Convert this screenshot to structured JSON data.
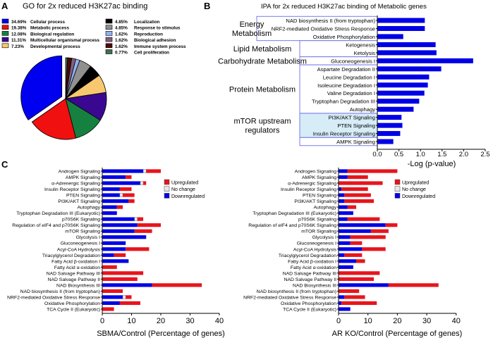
{
  "panels": {
    "a": "A",
    "b": "B",
    "c": "C"
  },
  "colors": {
    "blue": "#0000e6",
    "red": "#e8141c",
    "nochange": "#e8e8e8",
    "box": "#7a7af0",
    "mtor_fill": "#d6ecf7"
  },
  "chart_data": [
    {
      "type": "pie",
      "title": "GO for 2x reduced H3K27ac binding",
      "legend": "top",
      "slices": [
        {
          "label": "34.69%",
          "name": "Cellular process",
          "value": 34.69,
          "color": "#0000f0",
          "exploded": true
        },
        {
          "label": "19.38%",
          "name": "Metabolic process",
          "value": 19.38,
          "color": "#f01010"
        },
        {
          "label": "12.08%",
          "name": "Biological regulation",
          "value": 12.08,
          "color": "#168040"
        },
        {
          "label": "11.31%",
          "name": "Multicellular organismal process",
          "value": 11.31,
          "color": "#3a0890"
        },
        {
          "label": "7.23%",
          "name": "Developmental process",
          "value": 7.23,
          "color": "#f8c870"
        },
        {
          "label": "4.85%",
          "name": "Localization",
          "value": 4.85,
          "color": "#000000"
        },
        {
          "label": "4.85%",
          "name": "Response to stimulus",
          "value": 4.85,
          "color": "#909090"
        },
        {
          "label": "1.62%",
          "name": "Reproduction",
          "value": 1.62,
          "color": "#90b0f0"
        },
        {
          "label": "1.62%",
          "name": "Biological adhesion",
          "value": 1.62,
          "color": "#806080"
        },
        {
          "label": "1.62%",
          "name": "Immune system process",
          "value": 1.62,
          "color": "#500808"
        },
        {
          "label": "0.77%",
          "name": "Cell proliferation",
          "value": 0.77,
          "color": "#407050"
        }
      ]
    },
    {
      "type": "bar",
      "orientation": "horizontal",
      "title": "IPA for 2x reduced H3K27ac binding of Metabolic genes",
      "xlabel": "-Log (p-value)",
      "xlim": [
        0,
        2.5
      ],
      "xticks": [
        "0.0",
        "0.5",
        "1.0",
        "1.5",
        "2.0",
        "2.5"
      ],
      "categories": [
        "NAD biosynthesis II (from tryptophan)",
        "NRF2-mediated Oxidative Stress Response",
        "Oxidative Phosphorylation",
        "Ketogenesis",
        "Ketolysis",
        "Gluconeogenesis I",
        "Aspartate Degradation II",
        "Leucine Degradation I",
        "Isoleucine Degradation I",
        "Valine Degradation I",
        "Tryptophan Degradation III",
        "Autophagy",
        "PI3K/AKT Signaling",
        "PTEN Signaling",
        "Insulin Receptor Signaling",
        "AMPK Signaling"
      ],
      "values": [
        1.1,
        1.1,
        0.6,
        1.35,
        1.37,
        2.22,
        1.48,
        1.2,
        1.17,
        1.09,
        0.97,
        0.84,
        0.56,
        0.58,
        0.53,
        0.37
      ],
      "groups": [
        {
          "label": [
            "Energy",
            "Metabolism"
          ],
          "from": 0,
          "to": 2
        },
        {
          "label": [
            "Lipid Metabolism"
          ],
          "from": 3,
          "to": 4
        },
        {
          "label": [
            "Carbohydrate Metabolism"
          ],
          "from": 5,
          "to": 5
        },
        {
          "label": [
            "Protein Metabolism"
          ],
          "from": 6,
          "to": 11
        },
        {
          "label": [
            "mTOR upstream",
            "regulators"
          ],
          "from": 12,
          "to": 14
        },
        {
          "label": [],
          "from": 15,
          "to": 15
        }
      ]
    },
    {
      "type": "bar",
      "orientation": "horizontal",
      "stacked": true,
      "xlabel": "SBMA/Control (Percentage of genes)",
      "xlim": [
        0,
        40
      ],
      "xticks": [
        "0",
        "10",
        "20",
        "30",
        "40"
      ],
      "legend": "top-right",
      "series": [
        {
          "name": "Downregulated",
          "values": [
            14,
            8,
            13,
            6,
            6,
            9,
            5,
            5,
            11,
            12,
            11,
            15,
            8,
            8,
            4,
            9,
            0,
            0,
            0,
            17,
            0,
            7,
            6,
            0
          ]
        },
        {
          "name": "No change",
          "values": [
            1,
            0,
            1,
            0,
            1,
            0,
            0,
            0,
            1,
            0,
            0,
            0,
            0,
            0,
            0,
            0,
            0,
            0,
            0,
            0,
            0,
            1,
            0,
            0
          ]
        },
        {
          "name": "Upregulated",
          "values": [
            5,
            2,
            1,
            4,
            4,
            2,
            2,
            0,
            2,
            8,
            6,
            0,
            0,
            8,
            4,
            0,
            5,
            14,
            12,
            17,
            7,
            2,
            7,
            4
          ]
        }
      ]
    },
    {
      "type": "bar",
      "orientation": "horizontal",
      "stacked": true,
      "xlabel": "AR KO/Control (Percentage of genes)",
      "xlim": [
        0,
        40
      ],
      "xticks": [
        "0",
        "10",
        "20",
        "30",
        "40"
      ],
      "legend": "top-right",
      "series": [
        {
          "name": "Downregulated",
          "values": [
            3,
            3,
            0,
            1,
            2,
            2,
            3,
            5,
            3,
            16,
            11,
            4,
            4,
            8,
            2,
            6,
            5,
            0,
            0,
            17,
            0,
            2,
            1,
            4
          ]
        },
        {
          "name": "No change",
          "values": [
            0,
            0,
            0,
            0,
            0,
            0,
            0,
            0,
            0,
            0,
            0,
            0,
            0,
            0,
            0,
            0,
            0,
            0,
            0,
            0,
            0,
            0,
            0,
            0
          ]
        },
        {
          "name": "Upregulated",
          "values": [
            17,
            7,
            15,
            9,
            9,
            10,
            3,
            0,
            11,
            4,
            6,
            12,
            4,
            8,
            6,
            3,
            0,
            14,
            12,
            17,
            7,
            7,
            12,
            0
          ]
        }
      ]
    }
  ],
  "c_categories": [
    "Androgen Signaling",
    "AMPK Signaling",
    "α-Adrenergic Signaling",
    "Insulin Receptor Signaling",
    "PTEN Signaling",
    "PI3K/AKT Signaling",
    "Autophagy",
    "Tryptophan Degradation III (Eukaryotic)",
    "p70S6K Signaling",
    "Regulation of eIF4 and p70S6K Signaling",
    "mTOR Signaling",
    "Glycolysis I",
    "Gluconeogenesis I",
    "Acyl-CoA Hydrolysis",
    "Triacylglycerol Degradation",
    "Fatty Acid β-oxidation I",
    "Fatty Acid α-oxidation",
    "NAD Salvage Pathway III",
    "NAD Salvage Pathway II",
    "NAD Biosynthesis III",
    "NAD biosynthesis II (from tryptophan)",
    "NRF2-mediated Oxidative Stress Response",
    "Oxidative Phosphorylation",
    "TCA Cycle II (Eukaryotic)"
  ]
}
